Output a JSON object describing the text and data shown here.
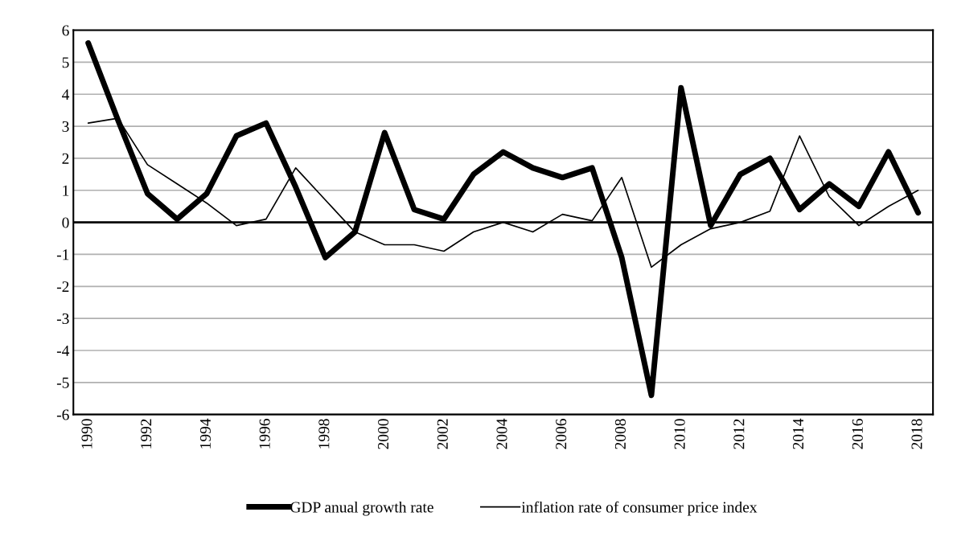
{
  "chart_data": {
    "type": "line",
    "x": [
      1990,
      1991,
      1992,
      1993,
      1994,
      1995,
      1996,
      1997,
      1998,
      1999,
      2000,
      2001,
      2002,
      2003,
      2004,
      2005,
      2006,
      2007,
      2008,
      2009,
      2010,
      2011,
      2012,
      2013,
      2014,
      2015,
      2016,
      2017,
      2018
    ],
    "series": [
      {
        "name": "GDP anual growth rate",
        "color": "#000000",
        "values": [
          5.6,
          3.2,
          0.9,
          0.1,
          0.9,
          2.7,
          3.1,
          1.1,
          -1.1,
          -0.3,
          2.8,
          0.4,
          0.1,
          1.5,
          2.2,
          1.7,
          1.4,
          1.7,
          -1.1,
          -5.4,
          4.2,
          -0.1,
          1.5,
          2.0,
          0.4,
          1.2,
          0.5,
          2.2,
          0.3
        ]
      },
      {
        "name": "inflation rate of consumer price index",
        "color": "#000000",
        "values": [
          3.1,
          3.25,
          1.8,
          1.2,
          0.6,
          -0.1,
          0.1,
          1.7,
          0.7,
          -0.3,
          -0.7,
          -0.7,
          -0.9,
          -0.3,
          0.0,
          -0.3,
          0.25,
          0.05,
          1.4,
          -1.4,
          -0.7,
          -0.2,
          0.0,
          0.35,
          2.7,
          0.8,
          -0.1,
          0.5,
          1.0
        ]
      }
    ],
    "xlim": [
      1989.5,
      2018.5
    ],
    "xticks": [
      1990,
      1992,
      1994,
      1996,
      1998,
      2000,
      2002,
      2004,
      2006,
      2008,
      2010,
      2012,
      2014,
      2016,
      2018
    ],
    "ylim": [
      -6,
      6
    ],
    "yticks": [
      -6,
      -5,
      -4,
      -3,
      -2,
      -1,
      0,
      1,
      2,
      3,
      4,
      5,
      6
    ],
    "grid": "y",
    "legend": "bottom",
    "ref_lines": [
      {
        "axis": "y",
        "value": 0,
        "color": "#000000"
      }
    ]
  }
}
